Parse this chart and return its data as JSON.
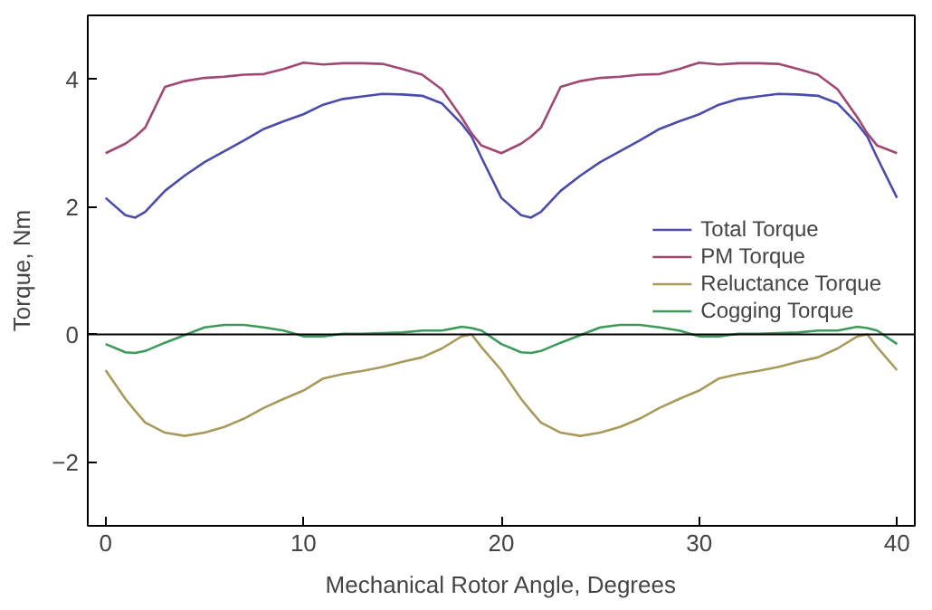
{
  "chart_data": {
    "type": "line",
    "xlabel": "Mechanical Rotor Angle, Degrees",
    "ylabel": "Torque, Nm",
    "x": [
      0,
      1,
      1.5,
      2,
      3,
      4,
      5,
      6,
      7,
      8,
      9,
      10,
      11,
      12,
      13,
      14,
      15,
      16,
      17,
      18,
      18.5,
      19,
      20,
      21,
      21.5,
      22,
      23,
      24,
      25,
      26,
      27,
      28,
      29,
      30,
      31,
      32,
      33,
      34,
      35,
      36,
      37,
      38,
      38.5,
      39,
      40
    ],
    "series": [
      {
        "name": "Total Torque",
        "color": "#4b4bab",
        "values": [
          2.14,
          1.87,
          1.83,
          1.92,
          2.25,
          2.49,
          2.7,
          2.87,
          3.04,
          3.22,
          3.34,
          3.45,
          3.6,
          3.69,
          3.73,
          3.77,
          3.76,
          3.74,
          3.62,
          3.3,
          3.1,
          2.77,
          2.14,
          1.87,
          1.83,
          1.92,
          2.25,
          2.49,
          2.7,
          2.87,
          3.04,
          3.22,
          3.34,
          3.45,
          3.6,
          3.69,
          3.73,
          3.77,
          3.76,
          3.74,
          3.62,
          3.3,
          3.1,
          2.77,
          2.14
        ]
      },
      {
        "name": "PM Torque",
        "color": "#a04874",
        "values": [
          2.84,
          2.99,
          3.1,
          3.24,
          3.88,
          3.97,
          4.02,
          4.04,
          4.07,
          4.08,
          4.16,
          4.26,
          4.23,
          4.25,
          4.25,
          4.24,
          4.16,
          4.07,
          3.84,
          3.4,
          3.15,
          2.96,
          2.84,
          2.99,
          3.1,
          3.24,
          3.88,
          3.97,
          4.02,
          4.04,
          4.07,
          4.08,
          4.16,
          4.26,
          4.23,
          4.25,
          4.25,
          4.24,
          4.16,
          4.07,
          3.84,
          3.4,
          3.15,
          2.96,
          2.84
        ]
      },
      {
        "name": "Reluctance Torque",
        "color": "#a89a5a",
        "values": [
          -0.56,
          -1.01,
          -1.2,
          -1.38,
          -1.54,
          -1.59,
          -1.54,
          -1.45,
          -1.32,
          -1.15,
          -1.01,
          -0.88,
          -0.69,
          -0.62,
          -0.57,
          -0.51,
          -0.43,
          -0.36,
          -0.22,
          -0.03,
          0.0,
          -0.2,
          -0.56,
          -1.01,
          -1.2,
          -1.38,
          -1.54,
          -1.59,
          -1.54,
          -1.45,
          -1.32,
          -1.15,
          -1.01,
          -0.88,
          -0.69,
          -0.62,
          -0.57,
          -0.51,
          -0.43,
          -0.36,
          -0.22,
          -0.03,
          0.0,
          -0.2,
          -0.56
        ]
      },
      {
        "name": "Cogging Torque",
        "color": "#3d9a5a",
        "values": [
          -0.15,
          -0.28,
          -0.29,
          -0.26,
          -0.13,
          -0.01,
          0.11,
          0.15,
          0.15,
          0.11,
          0.06,
          -0.03,
          -0.03,
          0.01,
          0.01,
          0.02,
          0.03,
          0.06,
          0.06,
          0.12,
          0.1,
          0.06,
          -0.15,
          -0.28,
          -0.29,
          -0.26,
          -0.13,
          -0.01,
          0.11,
          0.15,
          0.15,
          0.11,
          0.06,
          -0.03,
          -0.03,
          0.01,
          0.01,
          0.02,
          0.03,
          0.06,
          0.06,
          0.12,
          0.1,
          0.06,
          -0.15
        ]
      }
    ],
    "ref_lines": [
      {
        "axis": "y",
        "value": 0,
        "color": "#000000"
      }
    ],
    "xlim": [
      -0.9,
      40.9
    ],
    "ylim": [
      -3,
      5
    ],
    "xticks": [
      0,
      10,
      20,
      30,
      40
    ],
    "yticks": [
      -2,
      0,
      2,
      4
    ],
    "grid": false,
    "legend": "right",
    "marker": "none",
    "line_style": "solid"
  }
}
